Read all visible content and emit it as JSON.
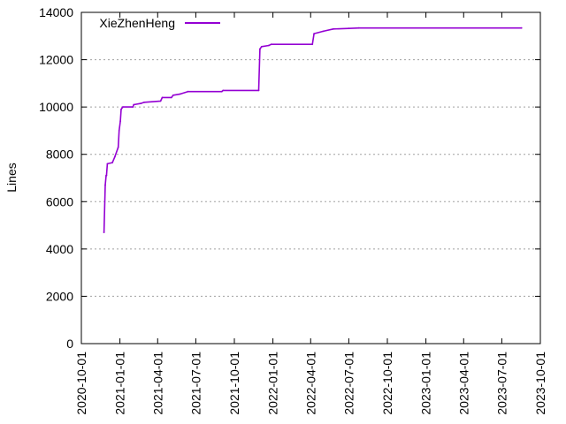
{
  "chart_data": {
    "type": "line",
    "title": "",
    "xlabel": "",
    "ylabel": "Lines",
    "x_type": "date",
    "xlim": [
      "2020-10-01",
      "2023-10-01"
    ],
    "ylim": [
      0,
      14000
    ],
    "x_ticks": [
      "2020-10-01",
      "2021-01-01",
      "2021-04-01",
      "2021-07-01",
      "2021-10-01",
      "2022-01-01",
      "2022-04-01",
      "2022-07-01",
      "2022-10-01",
      "2023-01-01",
      "2023-04-01",
      "2023-07-01",
      "2023-10-01"
    ],
    "y_ticks": [
      0,
      2000,
      4000,
      6000,
      8000,
      10000,
      12000,
      14000
    ],
    "grid": true,
    "legend_position": "top-left",
    "series": [
      {
        "name": "XieZhenHeng",
        "color": "#9400d3",
        "points": [
          {
            "x": "2020-11-24",
            "y": 4700
          },
          {
            "x": "2020-11-27",
            "y": 6700
          },
          {
            "x": "2020-11-29",
            "y": 7100
          },
          {
            "x": "2020-11-30",
            "y": 7100
          },
          {
            "x": "2020-12-02",
            "y": 7600
          },
          {
            "x": "2020-12-14",
            "y": 7650
          },
          {
            "x": "2020-12-20",
            "y": 7900
          },
          {
            "x": "2020-12-28",
            "y": 8300
          },
          {
            "x": "2020-12-30",
            "y": 9000
          },
          {
            "x": "2021-01-02",
            "y": 9400
          },
          {
            "x": "2021-01-04",
            "y": 9900
          },
          {
            "x": "2021-01-08",
            "y": 10000
          },
          {
            "x": "2021-02-01",
            "y": 10000
          },
          {
            "x": "2021-02-03",
            "y": 10100
          },
          {
            "x": "2021-02-20",
            "y": 10150
          },
          {
            "x": "2021-02-28",
            "y": 10200
          },
          {
            "x": "2021-04-08",
            "y": 10250
          },
          {
            "x": "2021-04-12",
            "y": 10400
          },
          {
            "x": "2021-05-04",
            "y": 10400
          },
          {
            "x": "2021-05-08",
            "y": 10500
          },
          {
            "x": "2021-05-25",
            "y": 10550
          },
          {
            "x": "2021-06-12",
            "y": 10650
          },
          {
            "x": "2021-09-01",
            "y": 10650
          },
          {
            "x": "2021-09-04",
            "y": 10700
          },
          {
            "x": "2021-11-28",
            "y": 10700
          },
          {
            "x": "2021-12-01",
            "y": 12450
          },
          {
            "x": "2021-12-05",
            "y": 12550
          },
          {
            "x": "2021-12-22",
            "y": 12600
          },
          {
            "x": "2021-12-28",
            "y": 12650
          },
          {
            "x": "2022-04-05",
            "y": 12650
          },
          {
            "x": "2022-04-09",
            "y": 13100
          },
          {
            "x": "2022-05-01",
            "y": 13200
          },
          {
            "x": "2022-05-25",
            "y": 13300
          },
          {
            "x": "2022-07-01",
            "y": 13320
          },
          {
            "x": "2022-07-25",
            "y": 13340
          },
          {
            "x": "2023-08-17",
            "y": 13340
          }
        ]
      }
    ]
  }
}
